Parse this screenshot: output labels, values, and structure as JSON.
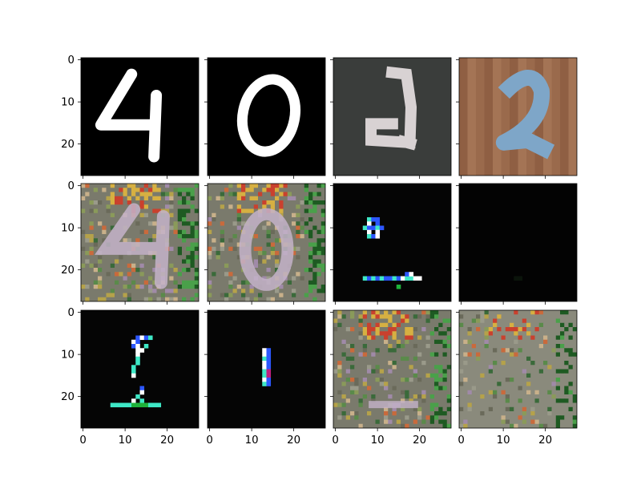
{
  "chart_data": {
    "type": "heatmap",
    "layout": {
      "rows": 3,
      "cols": 4
    },
    "image_size": [
      28,
      28
    ],
    "axis_ticks": {
      "x": [
        "0",
        "10",
        "20"
      ],
      "y": [
        "0",
        "10",
        "20"
      ]
    },
    "panels": [
      {
        "row": 0,
        "col": 0,
        "background": "#000000",
        "digit": "4",
        "digit_color": "#ffffff",
        "content": "digit-4"
      },
      {
        "row": 0,
        "col": 1,
        "background": "#000000",
        "digit": "0",
        "digit_color": "#ffffff",
        "content": "digit-0"
      },
      {
        "row": 0,
        "col": 2,
        "background": "#3a3d3b",
        "digit": "2",
        "digit_color": "#d8d2d3",
        "content": "digit-2-dark"
      },
      {
        "row": 0,
        "col": 3,
        "background": "#9a6a4c",
        "digit": "2",
        "digit_color": "#7ea6c8",
        "content": "digit-2-wood"
      },
      {
        "row": 1,
        "col": 0,
        "background": "#7a7a6c",
        "digit": "4",
        "digit_color": "#c4b3c9",
        "content": "noisy-4"
      },
      {
        "row": 1,
        "col": 1,
        "background": "#7a7a6c",
        "digit": "0",
        "digit_color": "#c4b3c9",
        "content": "noisy-0"
      },
      {
        "row": 1,
        "col": 2,
        "background": "#050505",
        "digit": "",
        "digit_color": "#3ee8c6",
        "content": "sparse-fragments"
      },
      {
        "row": 1,
        "col": 3,
        "background": "#030303",
        "digit": "",
        "digit_color": "#0b140b",
        "content": "near-black"
      },
      {
        "row": 2,
        "col": 0,
        "background": "#050505",
        "digit": "",
        "digit_color": "#3ee8c6",
        "content": "thin-glyph"
      },
      {
        "row": 2,
        "col": 1,
        "background": "#050505",
        "digit": "",
        "digit_color": "#3ee8c6",
        "content": "vertical-stroke"
      },
      {
        "row": 2,
        "col": 2,
        "background": "#7a7a6c",
        "digit": "",
        "digit_color": "#c4b3c9",
        "content": "noisy-faint"
      },
      {
        "row": 2,
        "col": 3,
        "background": "#8a8a7c",
        "digit": "",
        "digit_color": "#6e6e64",
        "content": "noisy-blank"
      }
    ]
  }
}
